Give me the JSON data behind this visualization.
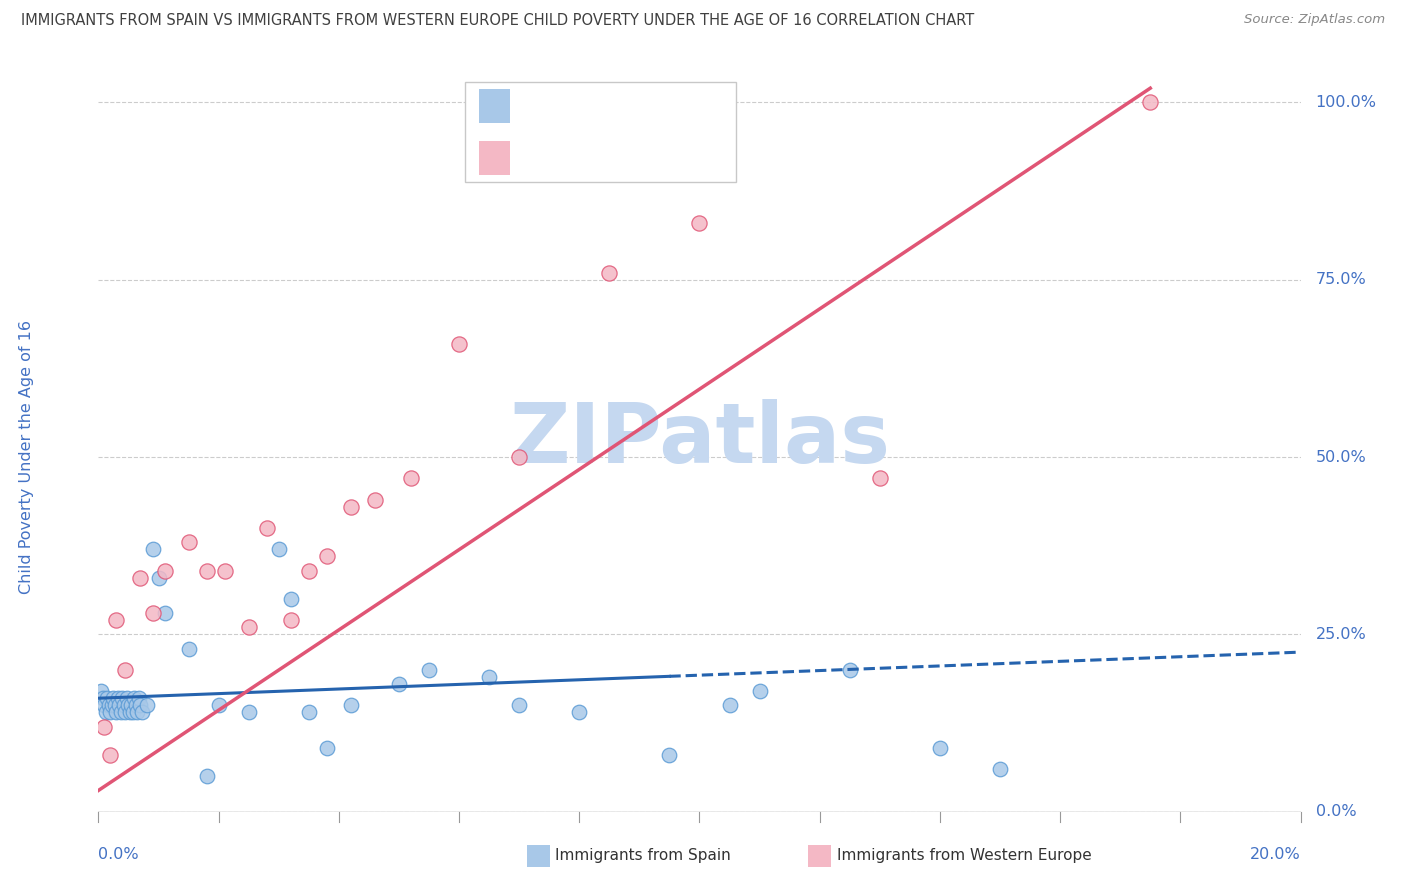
{
  "title": "IMMIGRANTS FROM SPAIN VS IMMIGRANTS FROM WESTERN EUROPE CHILD POVERTY UNDER THE AGE OF 16 CORRELATION CHART",
  "source": "Source: ZipAtlas.com",
  "ylabel": "Child Poverty Under the Age of 16",
  "y_tick_labels": [
    "0.0%",
    "25.0%",
    "50.0%",
    "75.0%",
    "100.0%"
  ],
  "y_tick_values": [
    0,
    25,
    50,
    75,
    100
  ],
  "x_range": [
    0,
    20
  ],
  "y_range": [
    0,
    105
  ],
  "blue_color": "#a8c8e8",
  "blue_edge_color": "#5b9bd5",
  "blue_line_color": "#2563ae",
  "pink_color": "#f4b8c5",
  "pink_edge_color": "#e05575",
  "pink_line_color": "#e05575",
  "legend_text_color": "#4472c4",
  "r_n_color": "#4472c4",
  "title_color": "#404040",
  "axis_label_color": "#4472c4",
  "grid_color": "#cccccc",
  "watermark_color": "#c5d8f0",
  "blue_scatter_x": [
    0.05,
    0.08,
    0.1,
    0.12,
    0.15,
    0.18,
    0.2,
    0.22,
    0.25,
    0.28,
    0.3,
    0.32,
    0.35,
    0.38,
    0.4,
    0.42,
    0.45,
    0.48,
    0.5,
    0.52,
    0.55,
    0.58,
    0.6,
    0.62,
    0.65,
    0.68,
    0.7,
    0.72,
    0.8,
    0.9,
    1.0,
    1.1,
    1.5,
    2.0,
    2.5,
    3.0,
    3.2,
    3.5,
    3.8,
    4.2,
    5.0,
    5.5,
    6.5,
    7.0,
    8.0,
    9.5,
    10.5,
    11.0,
    12.5,
    14.0,
    15.0,
    1.8
  ],
  "blue_scatter_y": [
    17,
    16,
    15,
    14,
    16,
    15,
    14,
    15,
    16,
    15,
    14,
    16,
    15,
    14,
    16,
    15,
    14,
    16,
    15,
    14,
    15,
    14,
    16,
    15,
    14,
    16,
    15,
    14,
    15,
    37,
    33,
    28,
    23,
    15,
    14,
    37,
    30,
    14,
    9,
    15,
    18,
    20,
    19,
    15,
    14,
    8,
    15,
    17,
    20,
    9,
    6,
    5
  ],
  "pink_scatter_x": [
    0.1,
    0.2,
    0.3,
    0.45,
    0.7,
    0.9,
    1.1,
    1.5,
    1.8,
    2.1,
    2.5,
    2.8,
    3.2,
    3.5,
    3.8,
    4.2,
    4.6,
    5.2,
    6.0,
    7.0,
    8.5,
    10.0,
    13.0,
    17.5
  ],
  "pink_scatter_y": [
    12,
    8,
    27,
    20,
    33,
    28,
    34,
    38,
    34,
    34,
    26,
    40,
    27,
    34,
    36,
    43,
    44,
    47,
    66,
    50,
    76,
    83,
    47,
    100
  ],
  "blue_trend_x": [
    0.0,
    20.0
  ],
  "blue_trend_y": [
    16.0,
    22.5
  ],
  "blue_trend_dash_start": 9.5,
  "pink_trend_x": [
    0.0,
    17.5
  ],
  "pink_trend_y": [
    3.0,
    102.0
  ]
}
